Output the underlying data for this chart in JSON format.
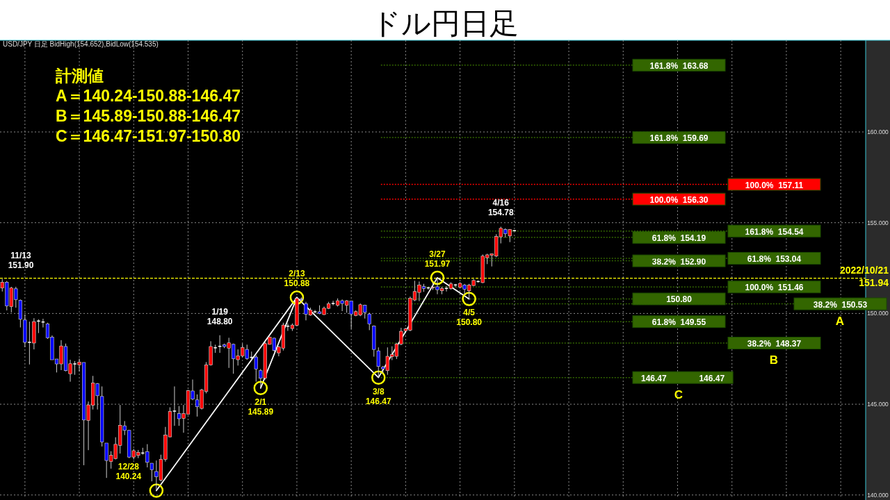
{
  "chart_data": {
    "type": "candlestick",
    "title": "ドル円日足",
    "subtitle": "USD/JPY 日足 BidHigh(154.652),BidLow(154.535)",
    "categories": [
      null,
      null,
      null,
      null,
      null,
      null,
      null,
      null,
      null,
      null,
      null,
      null,
      null,
      null,
      null,
      null,
      null,
      null,
      null,
      null,
      null,
      null,
      null,
      null,
      null,
      null,
      null,
      null,
      null,
      null,
      null,
      null,
      null,
      null,
      null,
      null,
      null,
      null,
      null,
      null,
      null,
      null,
      null,
      null,
      null,
      null,
      null,
      null,
      null,
      null,
      null,
      null,
      null,
      null,
      null,
      null,
      null,
      null,
      null,
      null,
      null,
      null,
      null,
      null,
      null,
      null,
      null,
      null,
      null,
      null,
      null,
      null,
      null,
      null,
      null,
      null,
      null,
      null,
      null,
      null,
      null,
      null,
      null,
      null,
      null,
      null,
      null,
      null,
      null,
      null,
      null,
      null,
      null,
      null,
      null,
      null,
      null,
      null,
      null,
      null,
      null,
      null,
      null,
      null,
      null,
      null,
      null,
      null,
      null,
      null,
      null,
      null,
      null,
      null,
      null,
      null,
      null,
      null,
      null,
      null,
      null,
      null,
      null,
      null,
      null,
      null,
      null,
      null,
      null,
      null,
      null,
      null,
      null,
      null,
      null,
      null,
      null,
      null,
      null,
      null,
      null,
      null,
      null,
      null,
      null,
      null,
      null,
      null,
      null,
      null,
      null,
      null,
      null,
      null,
      null,
      null,
      null,
      null,
      null,
      null,
      null,
      null,
      null,
      null,
      null,
      null,
      null,
      null,
      null,
      null,
      null,
      null,
      null,
      null,
      null,
      null,
      null,
      null,
      null,
      null,
      null,
      null,
      null,
      null,
      null,
      null,
      null,
      null,
      null,
      null,
      null
    ],
    "ohlc": [
      [
        151.4,
        151.9,
        151.21,
        151.72
      ],
      [
        151.72,
        151.79,
        150.17,
        150.41
      ],
      [
        150.38,
        151.47,
        150.06,
        151.4
      ],
      [
        151.36,
        151.47,
        150.32,
        150.77
      ],
      [
        150.73,
        150.77,
        149.23,
        149.68
      ],
      [
        149.64,
        149.94,
        148.15,
        148.41
      ],
      [
        148.41,
        149.55,
        147.19,
        148.41
      ],
      [
        148.37,
        149.74,
        148.02,
        149.55
      ],
      [
        149.58,
        149.68,
        148.92,
        149.58
      ],
      [
        149.53,
        149.71,
        149.23,
        149.53
      ],
      [
        149.43,
        149.49,
        148.6,
        148.66
      ],
      [
        148.69,
        148.79,
        147.45,
        147.45
      ],
      [
        147.49,
        147.49,
        146.75,
        147.22
      ],
      [
        147.22,
        148.53,
        146.88,
        148.21
      ],
      [
        148.18,
        148.34,
        146.81,
        146.85
      ],
      [
        146.68,
        147.45,
        146.24,
        147.23
      ],
      [
        147.22,
        147.38,
        146.62,
        147.22
      ],
      [
        147.17,
        147.51,
        146.81,
        147.32
      ],
      [
        147.3,
        147.3,
        141.64,
        144.13
      ],
      [
        144.11,
        145.15,
        142.47,
        144.96
      ],
      [
        144.94,
        146.56,
        144.71,
        146.17
      ],
      [
        146.13,
        146.17,
        144.71,
        145.47
      ],
      [
        145.43,
        145.98,
        142.67,
        142.92
      ],
      [
        142.86,
        142.86,
        140.94,
        141.9
      ],
      [
        141.84,
        142.41,
        141.45,
        142.19
      ],
      [
        142.0,
        143.18,
        141.96,
        142.79
      ],
      [
        142.73,
        144.96,
        142.28,
        143.84
      ],
      [
        143.81,
        144.07,
        143.3,
        143.56
      ],
      [
        143.56,
        143.56,
        142.03,
        142.09
      ],
      [
        142.09,
        142.54,
        141.96,
        142.44
      ],
      [
        142.18,
        142.48,
        142.03,
        142.35
      ],
      [
        142.31,
        142.6,
        142.22,
        142.31
      ],
      [
        142.39,
        142.8,
        141.52,
        141.8
      ],
      [
        141.75,
        141.75,
        140.75,
        141.39
      ],
      [
        141.29,
        141.9,
        140.24,
        141.01
      ],
      [
        140.82,
        142.22,
        140.75,
        141.96
      ],
      [
        141.96,
        143.75,
        141.84,
        143.3
      ],
      [
        143.2,
        144.83,
        143.18,
        144.6
      ],
      [
        144.62,
        145.98,
        143.81,
        144.62
      ],
      [
        144.48,
        144.9,
        143.81,
        144.2
      ],
      [
        144.22,
        144.96,
        143.43,
        144.48
      ],
      [
        144.45,
        145.79,
        144.45,
        145.75
      ],
      [
        145.73,
        146.36,
        145.22,
        145.28
      ],
      [
        145.24,
        145.54,
        144.32,
        144.86
      ],
      [
        144.77,
        145.85,
        144.71,
        145.79
      ],
      [
        145.7,
        147.32,
        145.6,
        147.17
      ],
      [
        147.16,
        148.47,
        147.13,
        148.18
      ],
      [
        148.11,
        148.28,
        147.83,
        148.11
      ],
      [
        148.19,
        148.8,
        147.83,
        148.19
      ],
      [
        148.28,
        148.34,
        148.09,
        148.18
      ],
      [
        148.09,
        148.66,
        147.0,
        148.38
      ],
      [
        148.3,
        148.34,
        146.68,
        147.51
      ],
      [
        147.45,
        148.02,
        147.13,
        147.67
      ],
      [
        147.67,
        148.34,
        147.58,
        148.12
      ],
      [
        148.02,
        148.28,
        147.45,
        147.51
      ],
      [
        147.58,
        147.9,
        147.39,
        147.58
      ],
      [
        147.6,
        147.7,
        146.24,
        146.94
      ],
      [
        146.85,
        146.94,
        145.89,
        146.43
      ],
      [
        146.43,
        148.41,
        146.36,
        148.34
      ],
      [
        148.3,
        148.72,
        148.28,
        148.69
      ],
      [
        148.64,
        148.66,
        147.9,
        147.96
      ],
      [
        147.83,
        148.21,
        147.64,
        148.15
      ],
      [
        148.09,
        149.49,
        147.96,
        149.36
      ],
      [
        149.3,
        149.45,
        149.04,
        149.3
      ],
      [
        149.17,
        149.45,
        149.04,
        149.36
      ],
      [
        149.34,
        150.88,
        149.3,
        150.83
      ],
      [
        150.8,
        150.88,
        150.64,
        150.77
      ],
      [
        150.54,
        150.64,
        149.62,
        149.96
      ],
      [
        149.91,
        150.32,
        149.87,
        150.19
      ],
      [
        150.09,
        150.19,
        150.0,
        150.09
      ],
      [
        150.09,
        150.45,
        149.96,
        150.0
      ],
      [
        149.94,
        150.38,
        149.91,
        150.29
      ],
      [
        150.28,
        150.64,
        150.24,
        150.54
      ],
      [
        150.55,
        150.7,
        150.45,
        150.55
      ],
      [
        150.45,
        150.83,
        150.38,
        150.7
      ],
      [
        150.7,
        150.77,
        150.13,
        150.55
      ],
      [
        150.45,
        150.74,
        150.04,
        150.7
      ],
      [
        150.68,
        150.68,
        149.15,
        149.97
      ],
      [
        149.89,
        150.17,
        149.85,
        150.1
      ],
      [
        149.91,
        150.55,
        149.85,
        150.48
      ],
      [
        150.45,
        150.48,
        149.72,
        150.06
      ],
      [
        149.97,
        150.04,
        149.08,
        149.43
      ],
      [
        149.3,
        149.34,
        147.62,
        148.02
      ],
      [
        147.94,
        148.13,
        146.47,
        147.08
      ],
      [
        147.04,
        147.11,
        146.72,
        146.95
      ],
      [
        146.85,
        148.13,
        146.62,
        147.64
      ],
      [
        147.62,
        148.19,
        147.43,
        147.74
      ],
      [
        147.64,
        148.38,
        147.49,
        148.32
      ],
      [
        148.32,
        149.21,
        148.25,
        149.02
      ],
      [
        149.04,
        149.21,
        149.02,
        149.15
      ],
      [
        149.08,
        150.93,
        149.02,
        150.83
      ],
      [
        150.74,
        151.8,
        150.68,
        151.21
      ],
      [
        151.16,
        151.76,
        150.68,
        151.57
      ],
      [
        151.48,
        151.63,
        151.19,
        151.38
      ],
      [
        151.41,
        151.47,
        151.31,
        151.41
      ],
      [
        151.43,
        151.7,
        151.3,
        151.45
      ],
      [
        151.47,
        151.97,
        151.06,
        151.31
      ],
      [
        151.25,
        151.47,
        151.06,
        151.38
      ],
      [
        151.38,
        151.5,
        151.21,
        151.38
      ],
      [
        151.38,
        151.72,
        151.31,
        151.63
      ],
      [
        151.57,
        151.63,
        151.44,
        151.57
      ],
      [
        151.44,
        151.72,
        151.38,
        151.66
      ],
      [
        151.57,
        151.63,
        151.06,
        151.34
      ],
      [
        151.25,
        151.63,
        150.8,
        151.57
      ],
      [
        151.54,
        151.89,
        151.51,
        151.82
      ],
      [
        151.76,
        151.82,
        151.7,
        151.76
      ],
      [
        151.7,
        153.25,
        151.67,
        153.16
      ],
      [
        153.07,
        153.29,
        152.72,
        153.23
      ],
      [
        153.2,
        153.29,
        152.59,
        153.29
      ],
      [
        153.16,
        154.37,
        153.1,
        154.24
      ],
      [
        154.22,
        154.78,
        153.86,
        154.69
      ],
      [
        154.63,
        154.69,
        154.18,
        154.4
      ],
      [
        154.27,
        154.65,
        153.93,
        154.63
      ],
      [
        154.56,
        154.6,
        154.54,
        154.56
      ],
      null,
      null,
      null,
      null,
      null,
      null,
      null,
      null,
      null,
      null,
      null,
      null,
      null,
      null,
      null,
      null,
      null,
      null,
      null,
      null,
      null,
      null,
      null,
      null,
      null,
      null,
      null,
      null,
      null,
      null,
      null,
      null,
      null,
      null,
      null,
      null,
      null,
      null,
      null,
      null,
      null,
      null,
      null,
      null,
      null,
      null,
      null,
      null,
      null,
      null,
      null,
      null,
      null,
      null,
      null,
      null,
      null,
      null,
      null,
      null,
      null,
      null,
      null,
      null,
      null,
      null,
      null,
      null,
      null,
      null,
      null,
      null,
      null,
      null,
      null,
      null,
      null
    ],
    "colors": [
      "#ff0000",
      "#0000ff",
      "#ff0000",
      "#0000ff",
      "#0000ff",
      "#0000ff",
      "#ffffff",
      "#ff0000",
      "#ffffff",
      "#ffffff",
      "#0000ff",
      "#0000ff",
      "#0000ff",
      "#ff0000",
      "#0000ff",
      "#ff0000",
      "#ffffff",
      "#ff0000",
      "#0000ff",
      "#ff0000",
      "#ff0000",
      "#0000ff",
      "#0000ff",
      "#0000ff",
      "#ff0000",
      "#ff0000",
      "#ff0000",
      "#0000ff",
      "#0000ff",
      "#ff0000",
      "#ff0000",
      "#ffffff",
      "#0000ff",
      "#0000ff",
      "#0000ff",
      "#ff0000",
      "#ff0000",
      "#ff0000",
      "#ffffff",
      "#0000ff",
      "#ff0000",
      "#ff0000",
      "#0000ff",
      "#0000ff",
      "#ff0000",
      "#ff0000",
      "#ff0000",
      "#ffffff",
      "#ffffff",
      "#0000ff",
      "#ff0000",
      "#0000ff",
      "#ff0000",
      "#ff0000",
      "#0000ff",
      "#ffffff",
      "#0000ff",
      "#0000ff",
      "#ff0000",
      "#ff0000",
      "#0000ff",
      "#ff0000",
      "#ff0000",
      "#ffffff",
      "#ff0000",
      "#ff0000",
      "#0000ff",
      "#0000ff",
      "#ff0000",
      "#ffffff",
      "#0000ff",
      "#ff0000",
      "#ff0000",
      "#ffffff",
      "#ff0000",
      "#0000ff",
      "#ff0000",
      "#0000ff",
      "#ff0000",
      "#ff0000",
      "#0000ff",
      "#0000ff",
      "#0000ff",
      "#0000ff",
      "#0000ff",
      "#ff0000",
      "#ff0000",
      "#ff0000",
      "#ff0000",
      "#ff0000",
      "#ff0000",
      "#ff0000",
      "#ff0000",
      "#0000ff",
      "#ffffff",
      "#ff0000",
      "#0000ff",
      "#ff0000",
      "#ffffff",
      "#ff0000",
      "#ffffff",
      "#ff0000",
      "#0000ff",
      "#ff0000",
      "#ff0000",
      "#ffffff",
      "#ff0000",
      "#ff0000",
      "#ff0000",
      "#ff0000",
      "#ff0000",
      "#0000ff",
      "#ff0000",
      "#ffffff",
      null,
      null,
      null,
      null,
      null,
      null,
      null,
      null,
      null,
      null,
      null,
      null,
      null,
      null,
      null,
      null,
      null,
      null,
      null,
      null,
      null,
      null,
      null,
      null,
      null,
      null,
      null,
      null,
      null,
      null,
      null,
      null,
      null,
      null,
      null,
      null,
      null,
      null,
      null,
      null,
      null,
      null,
      null,
      null,
      null,
      null,
      null,
      null,
      null,
      null,
      null,
      null,
      null,
      null,
      null,
      null,
      null,
      null,
      null,
      null,
      null,
      null,
      null,
      null,
      null,
      null,
      null,
      null,
      null,
      null,
      null,
      null,
      null,
      null,
      null,
      null,
      null
    ],
    "ylim": [
      139.8,
      165.05
    ],
    "yticks": [
      {
        "value": 140,
        "label": "140.000"
      },
      {
        "value": 145,
        "label": "145.000"
      },
      {
        "value": 150,
        "label": "150.000"
      },
      {
        "value": 155,
        "label": "155.000"
      },
      {
        "value": 160,
        "label": "160.000"
      }
    ],
    "tick_labels": "y",
    "grid": true,
    "series": [
      {
        "type": "line",
        "color": "#ffffff",
        "values": [
          null,
          null,
          null,
          null,
          null,
          null,
          null,
          null,
          null,
          null,
          null,
          null,
          null,
          null,
          null,
          null,
          null,
          null,
          null,
          null,
          null,
          null,
          null,
          null,
          null,
          null,
          null,
          null,
          null,
          null,
          null,
          null,
          null,
          null,
          140.24,
          null,
          null,
          null,
          null,
          null,
          null,
          null,
          null,
          null,
          null,
          null,
          null,
          null,
          null,
          null,
          null,
          null,
          null,
          null,
          null,
          null,
          null,
          null,
          null,
          null,
          null,
          null,
          null,
          null,
          null,
          150.88,
          null,
          null,
          null,
          null,
          null,
          null,
          null,
          null,
          null,
          null,
          null,
          null,
          null,
          null,
          null,
          null,
          null,
          146.47,
          null,
          null,
          null,
          null,
          null,
          null,
          null,
          null,
          null,
          null,
          null,
          null,
          151.97,
          null,
          null,
          null,
          null,
          null,
          null,
          150.8,
          null,
          null,
          null,
          null,
          null,
          null,
          null,
          null,
          null,
          null,
          null,
          null,
          null,
          null,
          null,
          null,
          null,
          null,
          null,
          null,
          null,
          null,
          null,
          null,
          null,
          null,
          null,
          null,
          null,
          null,
          null,
          null,
          null,
          null,
          null,
          null,
          null,
          null,
          null,
          null,
          null,
          null,
          null,
          null,
          null,
          null,
          null,
          null,
          null,
          null,
          null,
          null,
          null,
          null,
          null,
          null,
          null,
          null,
          null,
          null,
          null,
          null,
          null,
          null,
          null,
          null,
          null,
          null,
          null,
          null,
          null,
          null,
          null,
          null,
          null,
          null,
          null,
          null,
          null,
          null,
          null,
          null,
          null,
          null,
          null,
          null,
          null
        ]
      },
      {
        "type": "line",
        "color": "#ffffff",
        "values": [
          null,
          null,
          null,
          null,
          null,
          null,
          null,
          null,
          null,
          null,
          null,
          null,
          null,
          null,
          null,
          null,
          null,
          null,
          null,
          null,
          null,
          null,
          null,
          null,
          null,
          null,
          null,
          null,
          null,
          null,
          null,
          null,
          null,
          null,
          null,
          null,
          null,
          null,
          null,
          null,
          null,
          null,
          null,
          null,
          null,
          null,
          null,
          null,
          null,
          null,
          null,
          null,
          null,
          null,
          null,
          null,
          null,
          145.89,
          null,
          null,
          null,
          null,
          null,
          null,
          null,
          150.88,
          null,
          null,
          null,
          null,
          null,
          null,
          null,
          null,
          null,
          null,
          null,
          null,
          null,
          null,
          null,
          null,
          null,
          null,
          null,
          null,
          null,
          null,
          null,
          null,
          null,
          null,
          null,
          null,
          null,
          null,
          null,
          null,
          null,
          null,
          null,
          null,
          null,
          null,
          null,
          null,
          null,
          null,
          null,
          null,
          null,
          null,
          null,
          null,
          null,
          null,
          null,
          null,
          null,
          null,
          null,
          null,
          null,
          null,
          null,
          null,
          null,
          null,
          null,
          null,
          null,
          null,
          null,
          null,
          null,
          null,
          null,
          null,
          null,
          null,
          null,
          null,
          null,
          null,
          null,
          null,
          null,
          null,
          null,
          null,
          null,
          null,
          null,
          null,
          null,
          null,
          null,
          null,
          null,
          null,
          null,
          null,
          null,
          null,
          null,
          null,
          null,
          null,
          null,
          null,
          null,
          null,
          null,
          null,
          null,
          null,
          null,
          null,
          null,
          null,
          null,
          null,
          null,
          null,
          null,
          null,
          null,
          null,
          null,
          null,
          null
        ]
      },
      {
        "type": "scatter",
        "marker": "circle",
        "color": "#ffff00",
        "values": [
          null,
          null,
          null,
          null,
          null,
          null,
          null,
          null,
          null,
          null,
          null,
          null,
          null,
          null,
          null,
          null,
          null,
          null,
          null,
          null,
          null,
          null,
          null,
          null,
          null,
          null,
          null,
          null,
          null,
          null,
          null,
          null,
          null,
          null,
          140.24,
          null,
          null,
          null,
          null,
          null,
          null,
          null,
          null,
          null,
          null,
          null,
          null,
          null,
          null,
          null,
          null,
          null,
          null,
          null,
          null,
          null,
          null,
          145.89,
          null,
          null,
          null,
          null,
          null,
          null,
          null,
          150.88,
          null,
          null,
          null,
          null,
          null,
          null,
          null,
          null,
          null,
          null,
          null,
          null,
          null,
          null,
          null,
          null,
          null,
          146.47,
          null,
          null,
          null,
          null,
          null,
          null,
          null,
          null,
          null,
          null,
          null,
          null,
          151.97,
          null,
          null,
          null,
          null,
          null,
          null,
          150.8,
          null,
          null,
          null,
          null,
          null,
          null,
          null,
          null,
          null,
          null,
          null,
          null,
          null,
          null,
          null,
          null,
          null,
          null,
          null,
          null,
          null,
          null,
          null,
          null,
          null,
          null,
          null,
          null,
          null,
          null,
          null,
          null,
          null,
          null,
          null,
          null,
          null,
          null,
          null,
          null,
          null,
          null,
          null,
          null,
          null,
          null,
          null,
          null,
          null,
          null,
          null,
          null,
          null,
          null,
          null,
          null,
          null,
          null,
          null,
          null,
          null,
          null,
          null,
          null,
          null,
          null,
          null,
          null,
          null,
          null,
          null,
          null,
          null,
          null,
          null,
          null,
          null,
          null,
          null,
          null,
          null,
          null,
          null,
          null,
          null,
          null,
          null
        ],
        "value_labels": [
          null,
          null,
          null,
          null,
          null,
          null,
          null,
          null,
          null,
          null,
          null,
          null,
          null,
          null,
          null,
          null,
          null,
          null,
          null,
          null,
          null,
          null,
          null,
          null,
          null,
          null,
          null,
          null,
          null,
          null,
          null,
          null,
          null,
          null,
          "12/28\n140.24",
          null,
          null,
          null,
          null,
          null,
          null,
          null,
          null,
          null,
          null,
          null,
          null,
          null,
          null,
          null,
          null,
          null,
          null,
          null,
          null,
          null,
          null,
          "2/1\n145.89",
          null,
          null,
          null,
          null,
          null,
          null,
          null,
          "2/13\n150.88",
          null,
          null,
          null,
          null,
          null,
          null,
          null,
          null,
          null,
          null,
          null,
          null,
          null,
          null,
          null,
          null,
          null,
          "3/8\n146.47",
          null,
          null,
          null,
          null,
          null,
          null,
          null,
          null,
          null,
          null,
          null,
          null,
          "3/27\n151.97",
          null,
          null,
          null,
          null,
          null,
          null,
          "4/5\n150.80",
          null,
          null,
          null,
          null,
          null,
          null,
          null,
          null,
          null,
          null,
          null,
          null,
          null,
          null,
          null,
          null,
          null,
          null,
          null,
          null,
          null,
          null,
          null,
          null,
          null,
          null,
          null,
          null,
          null,
          null,
          null,
          null,
          null,
          null,
          null,
          null,
          null,
          null,
          null,
          null,
          null,
          null,
          null,
          null,
          null,
          null,
          null,
          null,
          null,
          null,
          null,
          null,
          null,
          null,
          null,
          null,
          null,
          null,
          null,
          null,
          null,
          null,
          null,
          null,
          null,
          null,
          null,
          null,
          null,
          null,
          null,
          null,
          null,
          null,
          null,
          null,
          null,
          null,
          null,
          null,
          null,
          null,
          null,
          null,
          null,
          null,
          null
        ]
      }
    ],
    "ref_lines": [
      {
        "axis": "y",
        "value": 159.69,
        "label": "161.8%  159.69",
        "color": "#336600",
        "line_style": "dotted"
      },
      {
        "axis": "y",
        "value": 156.3,
        "label": "100.0%  156.30",
        "color": "#ff0000",
        "line_style": "dotted"
      },
      {
        "axis": "y",
        "value": 154.19,
        "label": "61.8%  154.19",
        "color": "#336600",
        "line_style": "dotted"
      },
      {
        "axis": "y",
        "value": 152.9,
        "label": "38.2%  152.90",
        "color": "#336600",
        "line_style": "dotted"
      },
      {
        "axis": "y",
        "value": 150.8,
        "label": "150.80",
        "color": "#336600",
        "line_style": "dotted"
      },
      {
        "axis": "y",
        "value": 154.54,
        "label": "161.8%  154.54",
        "color": "#336600",
        "line_style": "dotted"
      },
      {
        "axis": "y",
        "value": 151.46,
        "label": "100.0%  151.46",
        "color": "#336600",
        "line_style": "dotted"
      },
      {
        "axis": "y",
        "value": 149.55,
        "label": "61.8%  149.55",
        "color": "#336600",
        "line_style": "dotted"
      },
      {
        "axis": "y",
        "value": 148.37,
        "label": "38.2%  148.37",
        "color": "#336600",
        "line_style": "dotted"
      },
      {
        "axis": "y",
        "value": 146.47,
        "label": "146.47              146.47",
        "color": "#336600",
        "line_style": "dotted"
      },
      {
        "axis": "y",
        "value": 163.68,
        "label": "161.8%  163.68",
        "color": "#336600",
        "line_style": "dotted"
      },
      {
        "axis": "y",
        "value": 157.11,
        "label": "100.0%  157.11",
        "color": "#ff0000",
        "line_style": "dotted"
      },
      {
        "axis": "y",
        "value": 153.04,
        "label": "61.8%  153.04",
        "color": "#336600",
        "line_style": "dotted"
      },
      {
        "axis": "y",
        "value": 150.53,
        "label": "38.2%  150.53",
        "color": "#336600",
        "line_style": "dotted"
      },
      {
        "axis": "y",
        "value": 151.94,
        "label": "2022/10/21\n151.94",
        "color": "#ffff00",
        "line_style": "dashed"
      }
    ],
    "annotations": [
      "計測値\nA＝140.24-150.88-146.47\nB＝145.89-150.88-146.47\nC＝146.47-151.97-150.80",
      "C",
      "B",
      "A",
      {
        "text": "11/13\n151.90",
        "y": 151.9
      },
      {
        "text": "1/19\n148.80",
        "y": 148.8
      },
      {
        "text": "4/16\n154.78",
        "y": 154.78
      }
    ]
  }
}
